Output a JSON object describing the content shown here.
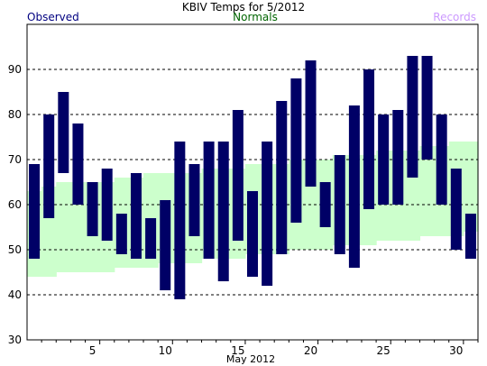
{
  "chart_data": {
    "type": "bar",
    "title": "KBIV Temps for 5/2012",
    "xlabel": "May 2012",
    "ylabel": "",
    "xlim": [
      1,
      31
    ],
    "ylim": [
      30,
      100
    ],
    "y_ticks": [
      30,
      40,
      50,
      60,
      70,
      80,
      90
    ],
    "x_ticks": [
      5,
      10,
      15,
      20,
      25,
      30
    ],
    "grid": true,
    "legend": {
      "observed": "Observed",
      "normals": "Normals",
      "records": "Records"
    },
    "colors": {
      "observed": "#000066",
      "observed_text": "#000080",
      "normals": "#ccffcc",
      "normals_text": "#006400",
      "records_text": "#cc99ff",
      "grid": "#000000"
    },
    "days": [
      1,
      2,
      3,
      4,
      5,
      6,
      7,
      8,
      9,
      10,
      11,
      12,
      13,
      14,
      15,
      16,
      17,
      18,
      19,
      20,
      21,
      22,
      23,
      24,
      25,
      26,
      27,
      28,
      29,
      30,
      31
    ],
    "observed_high": [
      69,
      80,
      85,
      78,
      65,
      68,
      58,
      67,
      57,
      61,
      74,
      69,
      74,
      74,
      81,
      63,
      74,
      83,
      88,
      92,
      65,
      71,
      82,
      90,
      80,
      81,
      93,
      93,
      80,
      68,
      58
    ],
    "observed_low": [
      48,
      57,
      67,
      60,
      53,
      52,
      49,
      48,
      48,
      41,
      39,
      53,
      48,
      43,
      52,
      44,
      42,
      49,
      56,
      64,
      55,
      49,
      46,
      59,
      60,
      60,
      66,
      70,
      60,
      50,
      48
    ],
    "normal_high": [
      63,
      64,
      65,
      65,
      65,
      65,
      66,
      66,
      67,
      67,
      67,
      67,
      68,
      68,
      68,
      69,
      69,
      69,
      70,
      70,
      70,
      71,
      71,
      71,
      72,
      72,
      72,
      73,
      73,
      74,
      74
    ],
    "normal_low": [
      44,
      44,
      45,
      45,
      45,
      45,
      46,
      46,
      46,
      47,
      47,
      47,
      48,
      48,
      48,
      49,
      49,
      49,
      50,
      50,
      50,
      51,
      51,
      51,
      52,
      52,
      52,
      53,
      53,
      53,
      54
    ]
  }
}
